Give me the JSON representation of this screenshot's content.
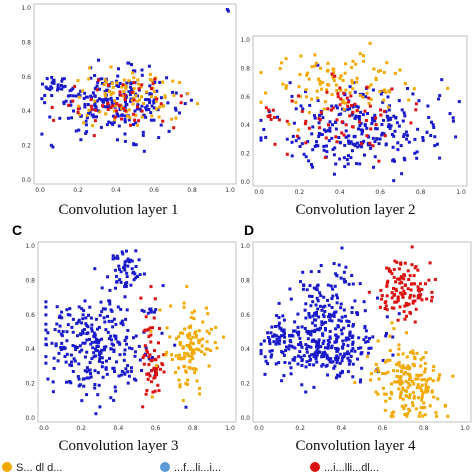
{
  "colors": {
    "class_blue": "#1a1acc",
    "class_orange": "#f2a900",
    "class_red": "#dd1111",
    "legend_light_blue": "#5b9bd5"
  },
  "panels": [
    {
      "letter": "",
      "caption": "Convolution layer 1"
    },
    {
      "letter": "",
      "caption": "Convolution layer 2"
    },
    {
      "letter": "C",
      "caption": "Convolution layer 3"
    },
    {
      "letter": "D",
      "caption": "Convolution layer 4"
    }
  ],
  "legend": {
    "item1": "S... dl d...",
    "item2": "...f...li...i...",
    "item3": "...i...lli...dl..."
  },
  "chart_data": [
    {
      "type": "scatter",
      "title": "Convolution layer 1",
      "xlim": [
        0,
        1
      ],
      "ylim": [
        0,
        1
      ],
      "x_ticks": [
        "0.0",
        "0.2",
        "0.4",
        "0.6",
        "0.8",
        "1.0"
      ],
      "y_ticks": [
        "0.0",
        "0.2",
        "0.4",
        "0.6",
        "0.8",
        "1.0"
      ],
      "grid": false,
      "clusters": [
        {
          "color": "blue",
          "cx": 0.4,
          "cy": 0.45,
          "sx": 0.17,
          "sy": 0.09,
          "n": 240
        },
        {
          "color": "orange",
          "cx": 0.48,
          "cy": 0.48,
          "sx": 0.16,
          "sy": 0.08,
          "n": 90
        },
        {
          "color": "red",
          "cx": 0.42,
          "cy": 0.44,
          "sx": 0.15,
          "sy": 0.07,
          "n": 55
        },
        {
          "color": "blue",
          "cx": 0.08,
          "cy": 0.56,
          "sx": 0.03,
          "sy": 0.03,
          "n": 25
        },
        {
          "color": "blue",
          "cx": 0.99,
          "cy": 0.99,
          "sx": 0.003,
          "sy": 0.003,
          "n": 2
        }
      ]
    },
    {
      "type": "scatter",
      "title": "Convolution layer 2",
      "xlim": [
        0,
        1
      ],
      "ylim": [
        0,
        1
      ],
      "x_ticks": [
        "0.0",
        "0.2",
        "0.4",
        "0.6",
        "0.8",
        "1.0"
      ],
      "y_ticks": [
        "0.0",
        "0.2",
        "0.4",
        "0.6",
        "0.8",
        "1.0"
      ],
      "grid": false,
      "clusters": [
        {
          "color": "blue",
          "cx": 0.5,
          "cy": 0.38,
          "sx": 0.2,
          "sy": 0.14,
          "n": 260
        },
        {
          "color": "orange",
          "cx": 0.4,
          "cy": 0.7,
          "sx": 0.17,
          "sy": 0.12,
          "n": 110
        },
        {
          "color": "red",
          "cx": 0.45,
          "cy": 0.45,
          "sx": 0.15,
          "sy": 0.12,
          "n": 70
        },
        {
          "color": "red",
          "cx": 0.06,
          "cy": 0.48,
          "sx": 0.02,
          "sy": 0.03,
          "n": 10
        }
      ]
    },
    {
      "type": "scatter",
      "title": "Convolution layer 3",
      "xlim": [
        0,
        1
      ],
      "ylim": [
        0,
        1
      ],
      "x_ticks": [
        "0.0",
        "0.2",
        "0.4",
        "0.6",
        "0.8",
        "1.0"
      ],
      "y_ticks": [
        "0.0",
        "0.2",
        "0.4",
        "0.6",
        "0.8",
        "1.0"
      ],
      "grid": false,
      "clusters": [
        {
          "color": "blue",
          "cx": 0.28,
          "cy": 0.42,
          "sx": 0.15,
          "sy": 0.15,
          "n": 280
        },
        {
          "color": "blue",
          "cx": 0.45,
          "cy": 0.85,
          "sx": 0.05,
          "sy": 0.07,
          "n": 50
        },
        {
          "color": "blue",
          "cx": 0.58,
          "cy": 0.62,
          "sx": 0.02,
          "sy": 0.02,
          "n": 10
        },
        {
          "color": "red",
          "cx": 0.58,
          "cy": 0.32,
          "sx": 0.03,
          "sy": 0.14,
          "n": 60
        },
        {
          "color": "orange",
          "cx": 0.78,
          "cy": 0.4,
          "sx": 0.07,
          "sy": 0.13,
          "n": 120
        }
      ]
    },
    {
      "type": "scatter",
      "title": "Convolution layer 4",
      "xlim": [
        0,
        1
      ],
      "ylim": [
        0,
        1
      ],
      "x_ticks": [
        "0.0",
        "0.2",
        "0.4",
        "0.6",
        "0.8",
        "1.0"
      ],
      "y_ticks": [
        "0.0",
        "0.2",
        "0.4",
        "0.6",
        "0.8",
        "1.0"
      ],
      "grid": false,
      "clusters": [
        {
          "color": "blue",
          "cx": 0.3,
          "cy": 0.42,
          "sx": 0.13,
          "sy": 0.1,
          "n": 300
        },
        {
          "color": "blue",
          "cx": 0.33,
          "cy": 0.7,
          "sx": 0.08,
          "sy": 0.1,
          "n": 100
        },
        {
          "color": "blue",
          "cx": 0.08,
          "cy": 0.45,
          "sx": 0.03,
          "sy": 0.05,
          "n": 20
        },
        {
          "color": "red",
          "cx": 0.7,
          "cy": 0.76,
          "sx": 0.07,
          "sy": 0.09,
          "n": 120
        },
        {
          "color": "orange",
          "cx": 0.72,
          "cy": 0.22,
          "sx": 0.08,
          "sy": 0.12,
          "n": 180
        }
      ]
    }
  ]
}
